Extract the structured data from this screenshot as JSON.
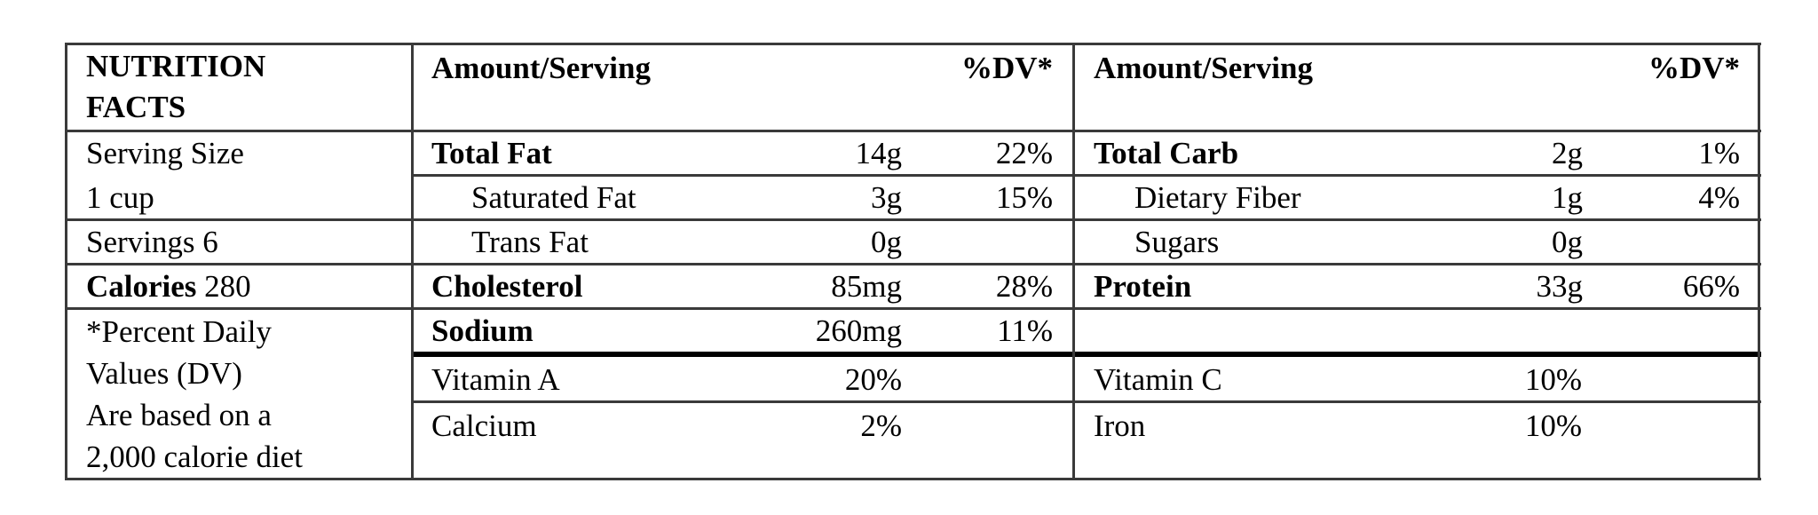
{
  "title_line1": "NUTRITION",
  "title_line2": "FACTS",
  "header": {
    "amount_label": "Amount/Serving",
    "dv_label": "%DV*"
  },
  "left_column": {
    "serving_size_label": "Serving Size",
    "serving_size_value": "1 cup",
    "servings": "Servings 6",
    "calories_label": "Calories",
    "calories_value": "280",
    "footnote": [
      "*Percent Daily",
      "Values (DV)",
      "Are based on a",
      "2,000 calorie diet"
    ]
  },
  "nutrients_left": [
    {
      "name": "Total Fat",
      "amount": "14g",
      "dv": "22%",
      "bold": true
    },
    {
      "name": "Saturated Fat",
      "amount": "3g",
      "dv": "15%",
      "bold": false
    },
    {
      "name": "Trans Fat",
      "amount": "0g",
      "dv": "",
      "bold": false
    },
    {
      "name": "Cholesterol",
      "amount": "85mg",
      "dv": "28%",
      "bold": true
    },
    {
      "name": "Sodium",
      "amount": "260mg",
      "dv": "11%",
      "bold": true
    }
  ],
  "nutrients_right": [
    {
      "name": "Total Carb",
      "amount": "2g",
      "dv": "1%",
      "bold": true
    },
    {
      "name": "Dietary Fiber",
      "amount": "1g",
      "dv": "4%",
      "bold": false
    },
    {
      "name": "Sugars",
      "amount": "0g",
      "dv": "",
      "bold": false
    },
    {
      "name": "Protein",
      "amount": "33g",
      "dv": "66%",
      "bold": true
    }
  ],
  "vitamins_left": [
    {
      "name": "Vitamin A",
      "value": "20%"
    },
    {
      "name": "Calcium",
      "value": "2%"
    }
  ],
  "vitamins_right": [
    {
      "name": "Vitamin C",
      "value": "10%"
    },
    {
      "name": "Iron",
      "value": "10%"
    }
  ]
}
